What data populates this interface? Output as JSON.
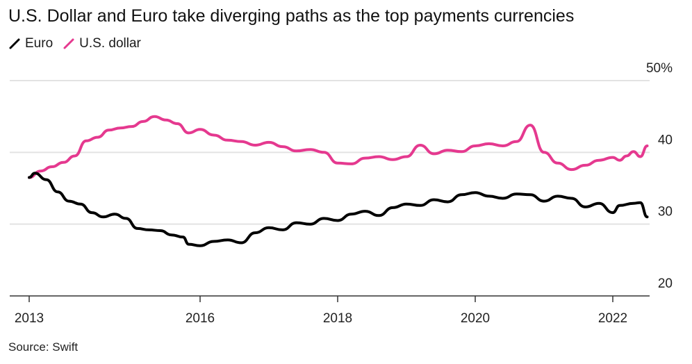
{
  "chart_data": {
    "type": "line",
    "title": "U.S. Dollar and Euro take diverging paths as the top payments currencies",
    "source": "Source: Swift",
    "xlabel": "",
    "ylabel": "",
    "ylim": [
      20,
      50
    ],
    "xlim": [
      2012.8,
      2022.5
    ],
    "y_ticks": [
      {
        "value": 50,
        "label": "50%"
      },
      {
        "value": 40,
        "label": "40"
      },
      {
        "value": 30,
        "label": "30"
      },
      {
        "value": 20,
        "label": "20"
      }
    ],
    "x_ticks": [
      {
        "value": 2013,
        "label": "2013"
      },
      {
        "value": 2016,
        "label": "2016"
      },
      {
        "value": 2018,
        "label": "2018"
      },
      {
        "value": 2020,
        "label": "2020"
      },
      {
        "value": 2022,
        "label": "2022"
      }
    ],
    "grid": true,
    "legend_position": "top-left",
    "series": [
      {
        "name": "Euro",
        "color": "#000000",
        "points": [
          [
            2013.0,
            36.5
          ],
          [
            2013.1,
            37.1
          ],
          [
            2013.3,
            36.2
          ],
          [
            2013.5,
            34.5
          ],
          [
            2013.7,
            33.2
          ],
          [
            2013.9,
            32.8
          ],
          [
            2014.1,
            31.6
          ],
          [
            2014.3,
            31.0
          ],
          [
            2014.5,
            31.4
          ],
          [
            2014.7,
            30.8
          ],
          [
            2014.9,
            29.4
          ],
          [
            2015.1,
            29.2
          ],
          [
            2015.3,
            29.1
          ],
          [
            2015.5,
            28.5
          ],
          [
            2015.7,
            28.2
          ],
          [
            2015.8,
            27.2
          ],
          [
            2016.0,
            27.0
          ],
          [
            2016.2,
            27.6
          ],
          [
            2016.4,
            27.8
          ],
          [
            2016.6,
            27.4
          ],
          [
            2016.8,
            28.8
          ],
          [
            2017.0,
            29.5
          ],
          [
            2017.2,
            29.2
          ],
          [
            2017.4,
            30.2
          ],
          [
            2017.6,
            30.0
          ],
          [
            2017.8,
            30.8
          ],
          [
            2018.0,
            30.5
          ],
          [
            2018.2,
            31.4
          ],
          [
            2018.4,
            31.8
          ],
          [
            2018.6,
            31.2
          ],
          [
            2018.8,
            32.3
          ],
          [
            2019.0,
            32.8
          ],
          [
            2019.2,
            32.6
          ],
          [
            2019.4,
            33.4
          ],
          [
            2019.6,
            33.1
          ],
          [
            2019.8,
            34.1
          ],
          [
            2020.0,
            34.4
          ],
          [
            2020.2,
            33.9
          ],
          [
            2020.4,
            33.6
          ],
          [
            2020.6,
            34.2
          ],
          [
            2020.8,
            34.1
          ],
          [
            2021.0,
            33.2
          ],
          [
            2021.2,
            33.9
          ],
          [
            2021.4,
            33.6
          ],
          [
            2021.6,
            32.4
          ],
          [
            2021.8,
            32.9
          ],
          [
            2022.0,
            31.6
          ],
          [
            2022.1,
            32.6
          ],
          [
            2022.3,
            32.9
          ],
          [
            2022.4,
            33.0
          ],
          [
            2022.5,
            31.0
          ]
        ]
      },
      {
        "name": "U.S. dollar",
        "color": "#e5398f",
        "points": [
          [
            2013.0,
            36.5
          ],
          [
            2013.2,
            37.4
          ],
          [
            2013.4,
            38.0
          ],
          [
            2013.6,
            38.6
          ],
          [
            2013.8,
            39.5
          ],
          [
            2014.0,
            41.6
          ],
          [
            2014.2,
            42.1
          ],
          [
            2014.4,
            43.1
          ],
          [
            2014.6,
            43.4
          ],
          [
            2014.8,
            43.6
          ],
          [
            2015.0,
            44.3
          ],
          [
            2015.2,
            45.0
          ],
          [
            2015.4,
            44.5
          ],
          [
            2015.6,
            44.0
          ],
          [
            2015.8,
            42.7
          ],
          [
            2016.0,
            43.2
          ],
          [
            2016.2,
            42.4
          ],
          [
            2016.4,
            41.7
          ],
          [
            2016.6,
            41.5
          ],
          [
            2016.8,
            41.0
          ],
          [
            2017.0,
            41.4
          ],
          [
            2017.2,
            40.8
          ],
          [
            2017.4,
            40.2
          ],
          [
            2017.6,
            40.4
          ],
          [
            2017.8,
            40.0
          ],
          [
            2018.0,
            38.5
          ],
          [
            2018.2,
            38.4
          ],
          [
            2018.4,
            39.2
          ],
          [
            2018.6,
            39.4
          ],
          [
            2018.8,
            39.0
          ],
          [
            2019.0,
            39.4
          ],
          [
            2019.2,
            41.0
          ],
          [
            2019.4,
            39.8
          ],
          [
            2019.6,
            40.3
          ],
          [
            2019.8,
            40.1
          ],
          [
            2020.0,
            40.9
          ],
          [
            2020.2,
            41.2
          ],
          [
            2020.4,
            40.9
          ],
          [
            2020.6,
            41.5
          ],
          [
            2020.8,
            43.8
          ],
          [
            2021.0,
            40.0
          ],
          [
            2021.2,
            38.5
          ],
          [
            2021.4,
            37.6
          ],
          [
            2021.6,
            38.2
          ],
          [
            2021.8,
            38.9
          ],
          [
            2022.0,
            39.3
          ],
          [
            2022.1,
            38.9
          ],
          [
            2022.2,
            39.5
          ],
          [
            2022.3,
            40.1
          ],
          [
            2022.4,
            39.4
          ],
          [
            2022.5,
            40.9
          ]
        ]
      }
    ]
  }
}
